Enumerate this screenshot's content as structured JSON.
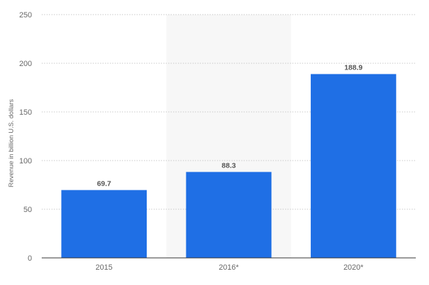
{
  "chart_data": {
    "type": "bar",
    "categories": [
      "2015",
      "2016*",
      "2020*"
    ],
    "values": [
      69.7,
      88.3,
      188.9
    ],
    "value_labels": [
      "69.7",
      "88.3",
      "188.9"
    ],
    "title": "",
    "xlabel": "",
    "ylabel": "Revenue in billion U.S. dollars",
    "ylim": [
      0,
      250
    ],
    "yticks": [
      0,
      50,
      100,
      150,
      200,
      250
    ],
    "grid": true,
    "legend": "none",
    "highlighted_category_index": 1
  },
  "colors": {
    "bar": "#1f6fe5",
    "highlight_band": "#f7f7f7",
    "grid": "#c8c8c8",
    "axis_text": "#666666",
    "value_text": "#555555",
    "baseline": "#333333"
  }
}
